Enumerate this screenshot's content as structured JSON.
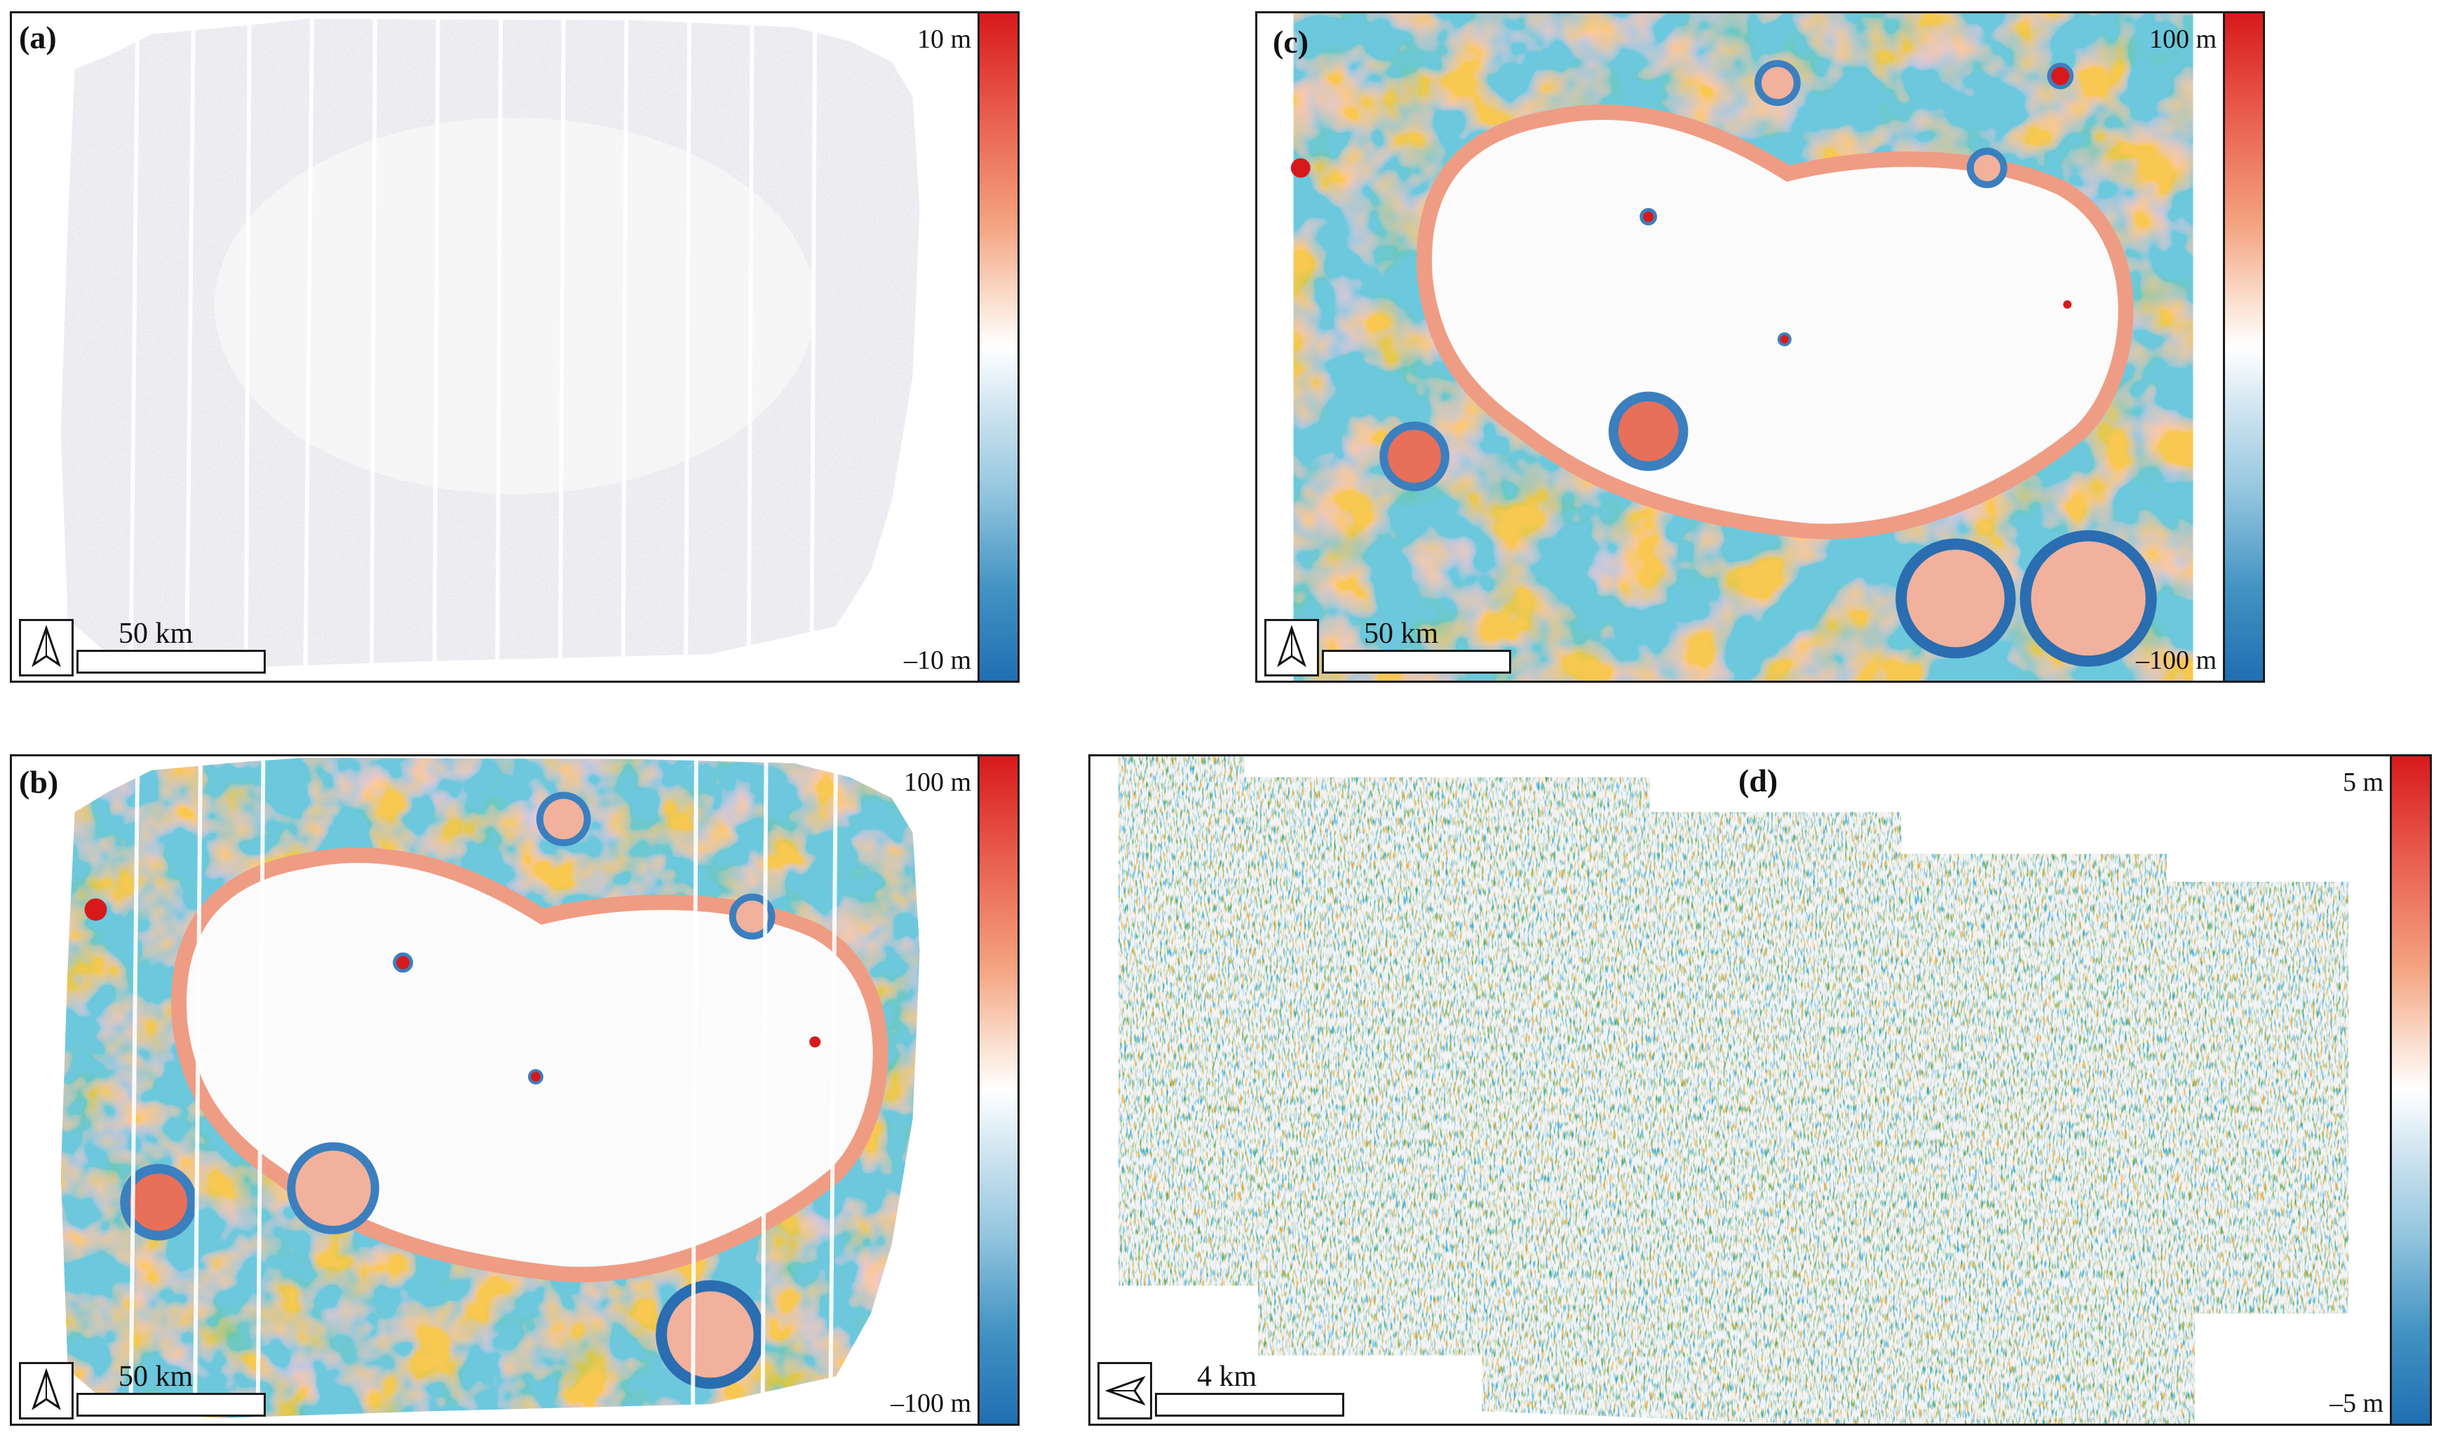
{
  "panels": {
    "a": {
      "label": "(a)",
      "cb_max": "10 m",
      "cb_min": "–10 m",
      "scale": "50 km",
      "north_icon": "north-arrow-icon"
    },
    "b": {
      "label": "(b)",
      "cb_max": "100 m",
      "cb_min": "–100 m",
      "scale": "50 km",
      "north_icon": "north-arrow-icon"
    },
    "c": {
      "label": "(c)",
      "cb_max": "100 m",
      "cb_min": "–100 m",
      "scale": "50 km",
      "north_icon": "north-arrow-icon"
    },
    "d": {
      "label": "(d)",
      "cb_max": "5 m",
      "cb_min": "–5 m",
      "scale": "4 km",
      "north_icon": "north-arrow-west-icon"
    }
  },
  "colors": {
    "positive": "#d7191c",
    "neutral": "#ffffff",
    "negative": "#1f6fb2"
  }
}
